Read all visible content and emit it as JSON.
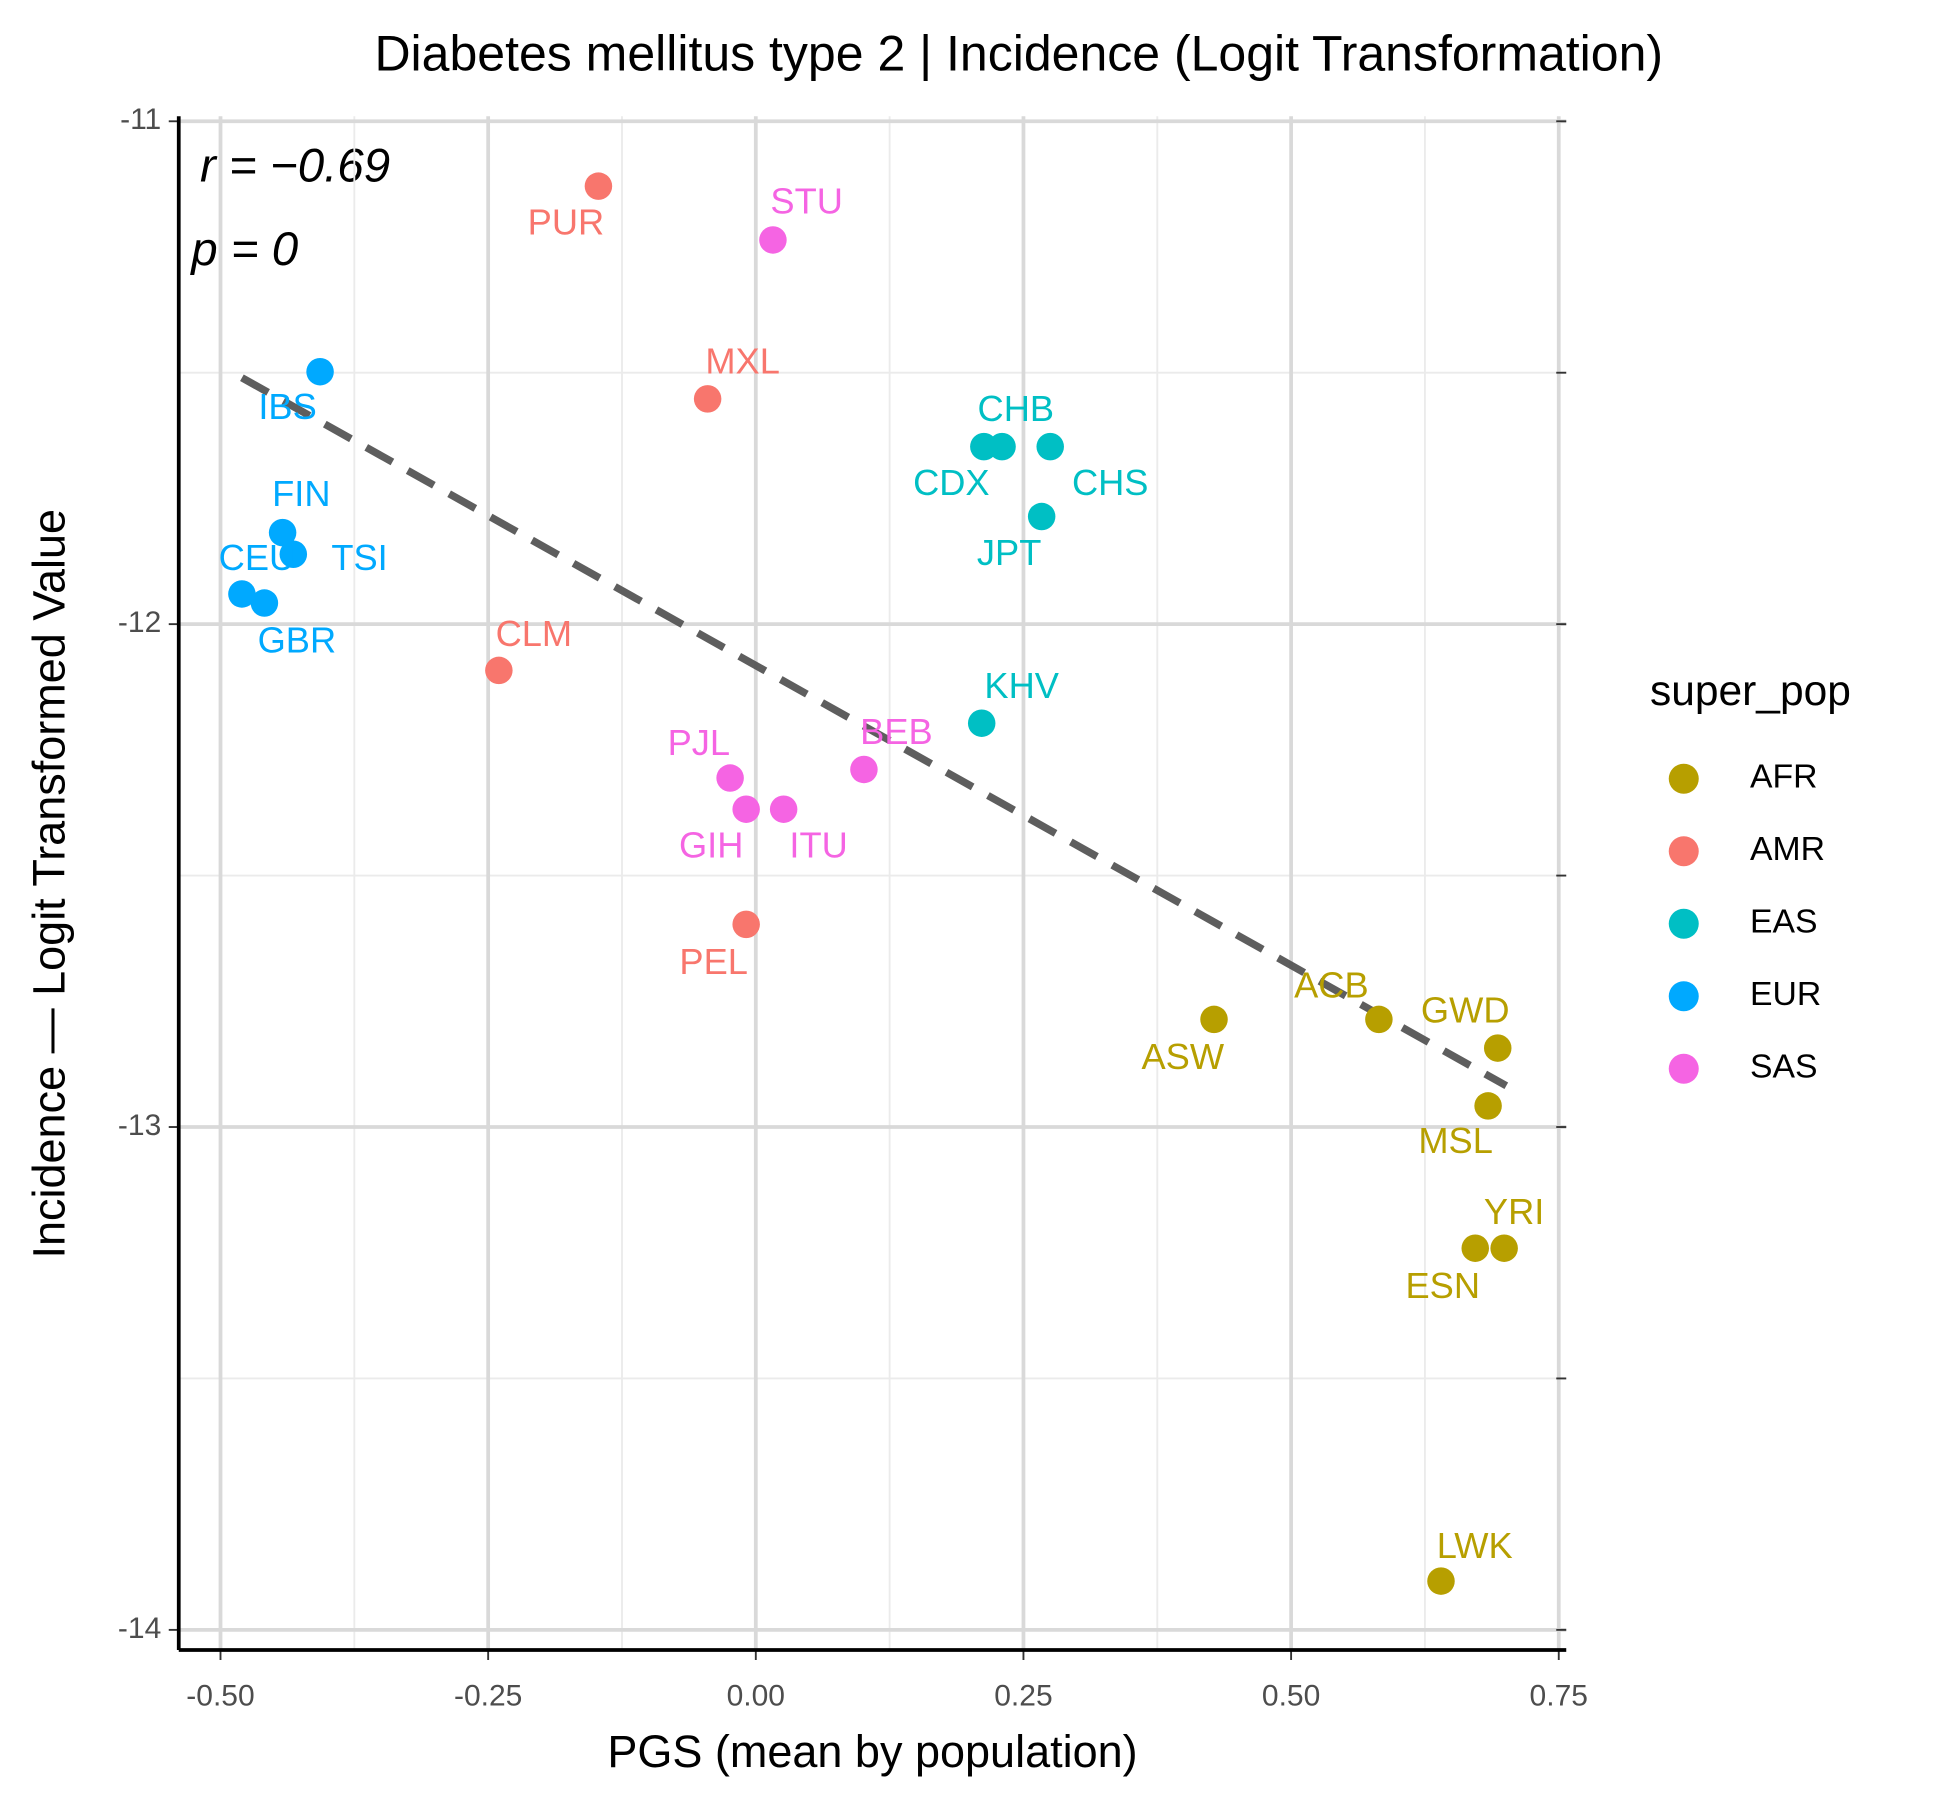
{
  "chart_data": {
    "type": "scatter",
    "title": "Diabetes mellitus type 2 | Incidence (Logit Transformation)",
    "x_label": "PGS (mean by population)",
    "y_label": "Incidence — Logit Transformed Value",
    "legend_title": "super_pop",
    "legend_position": "right",
    "annotations": [
      "r = −0.69",
      "p = 0"
    ],
    "grid": true,
    "xlim": [
      -0.539,
      0.757
    ],
    "ylim": [
      -14.04,
      -10.99
    ],
    "xticks": [
      {
        "value": -0.5,
        "label": "-0.50"
      },
      -0.25,
      {
        "value": 0,
        "label": "0.00"
      },
      0.25,
      {
        "value": 0.5,
        "label": "0.50"
      },
      0.75
    ],
    "yticks": [
      -11,
      -12,
      -13,
      -14
    ],
    "x_minor_grid": [
      -0.375,
      -0.125,
      0.125,
      0.375,
      0.625
    ],
    "y_minor_grid": [
      -11.5,
      -12.5,
      -13.5
    ],
    "trendline": {
      "x": [
        -0.48,
        0.701
      ],
      "y": [
        -11.51,
        -12.918
      ],
      "color": "#555555"
    },
    "series": [
      {
        "name": "AFR",
        "color": "#B79F00",
        "labels": [
          "ASW",
          "ACB",
          "GWD",
          "MSL",
          "ESN",
          "YRI",
          "LWK"
        ],
        "x": [
          0.428,
          0.582,
          0.693,
          0.684,
          0.672,
          0.699,
          0.64
        ],
        "values": [
          -12.786,
          -12.786,
          -12.843,
          -12.958,
          -13.241,
          -13.241,
          -13.903
        ]
      },
      {
        "name": "AMR",
        "color": "#F8766D",
        "labels": [
          "PUR",
          "MXL",
          "CLM",
          "PEL"
        ],
        "x": [
          -0.147,
          -0.045,
          -0.24,
          -0.009
        ],
        "values": [
          -11.129,
          -11.552,
          -12.092,
          -12.597
        ]
      },
      {
        "name": "EAS",
        "color": "#00BFC4",
        "labels": [
          "CHB",
          "CDX",
          "CHS",
          "JPT",
          "KHV"
        ],
        "x": [
          0.23,
          0.213,
          0.275,
          0.267,
          0.211
        ],
        "values": [
          -11.647,
          -11.647,
          -11.647,
          -11.786,
          -12.197
        ]
      },
      {
        "name": "EUR",
        "color": "#00A9FF",
        "labels": [
          "IBS",
          "FIN",
          "TSI",
          "CEU",
          "GBR"
        ],
        "x": [
          -0.407,
          -0.442,
          -0.432,
          -0.48,
          -0.459
        ],
        "values": [
          -11.498,
          -11.818,
          -11.861,
          -11.94,
          -11.958
        ]
      },
      {
        "name": "SAS",
        "color": "#F564E3",
        "labels": [
          "STU",
          "BEB",
          "PJL",
          "GIH",
          "ITU"
        ],
        "x": [
          0.016,
          0.101,
          -0.024,
          -0.009,
          0.026
        ],
        "values": [
          -11.236,
          -12.289,
          -12.306,
          -12.368,
          -12.368
        ]
      }
    ]
  }
}
